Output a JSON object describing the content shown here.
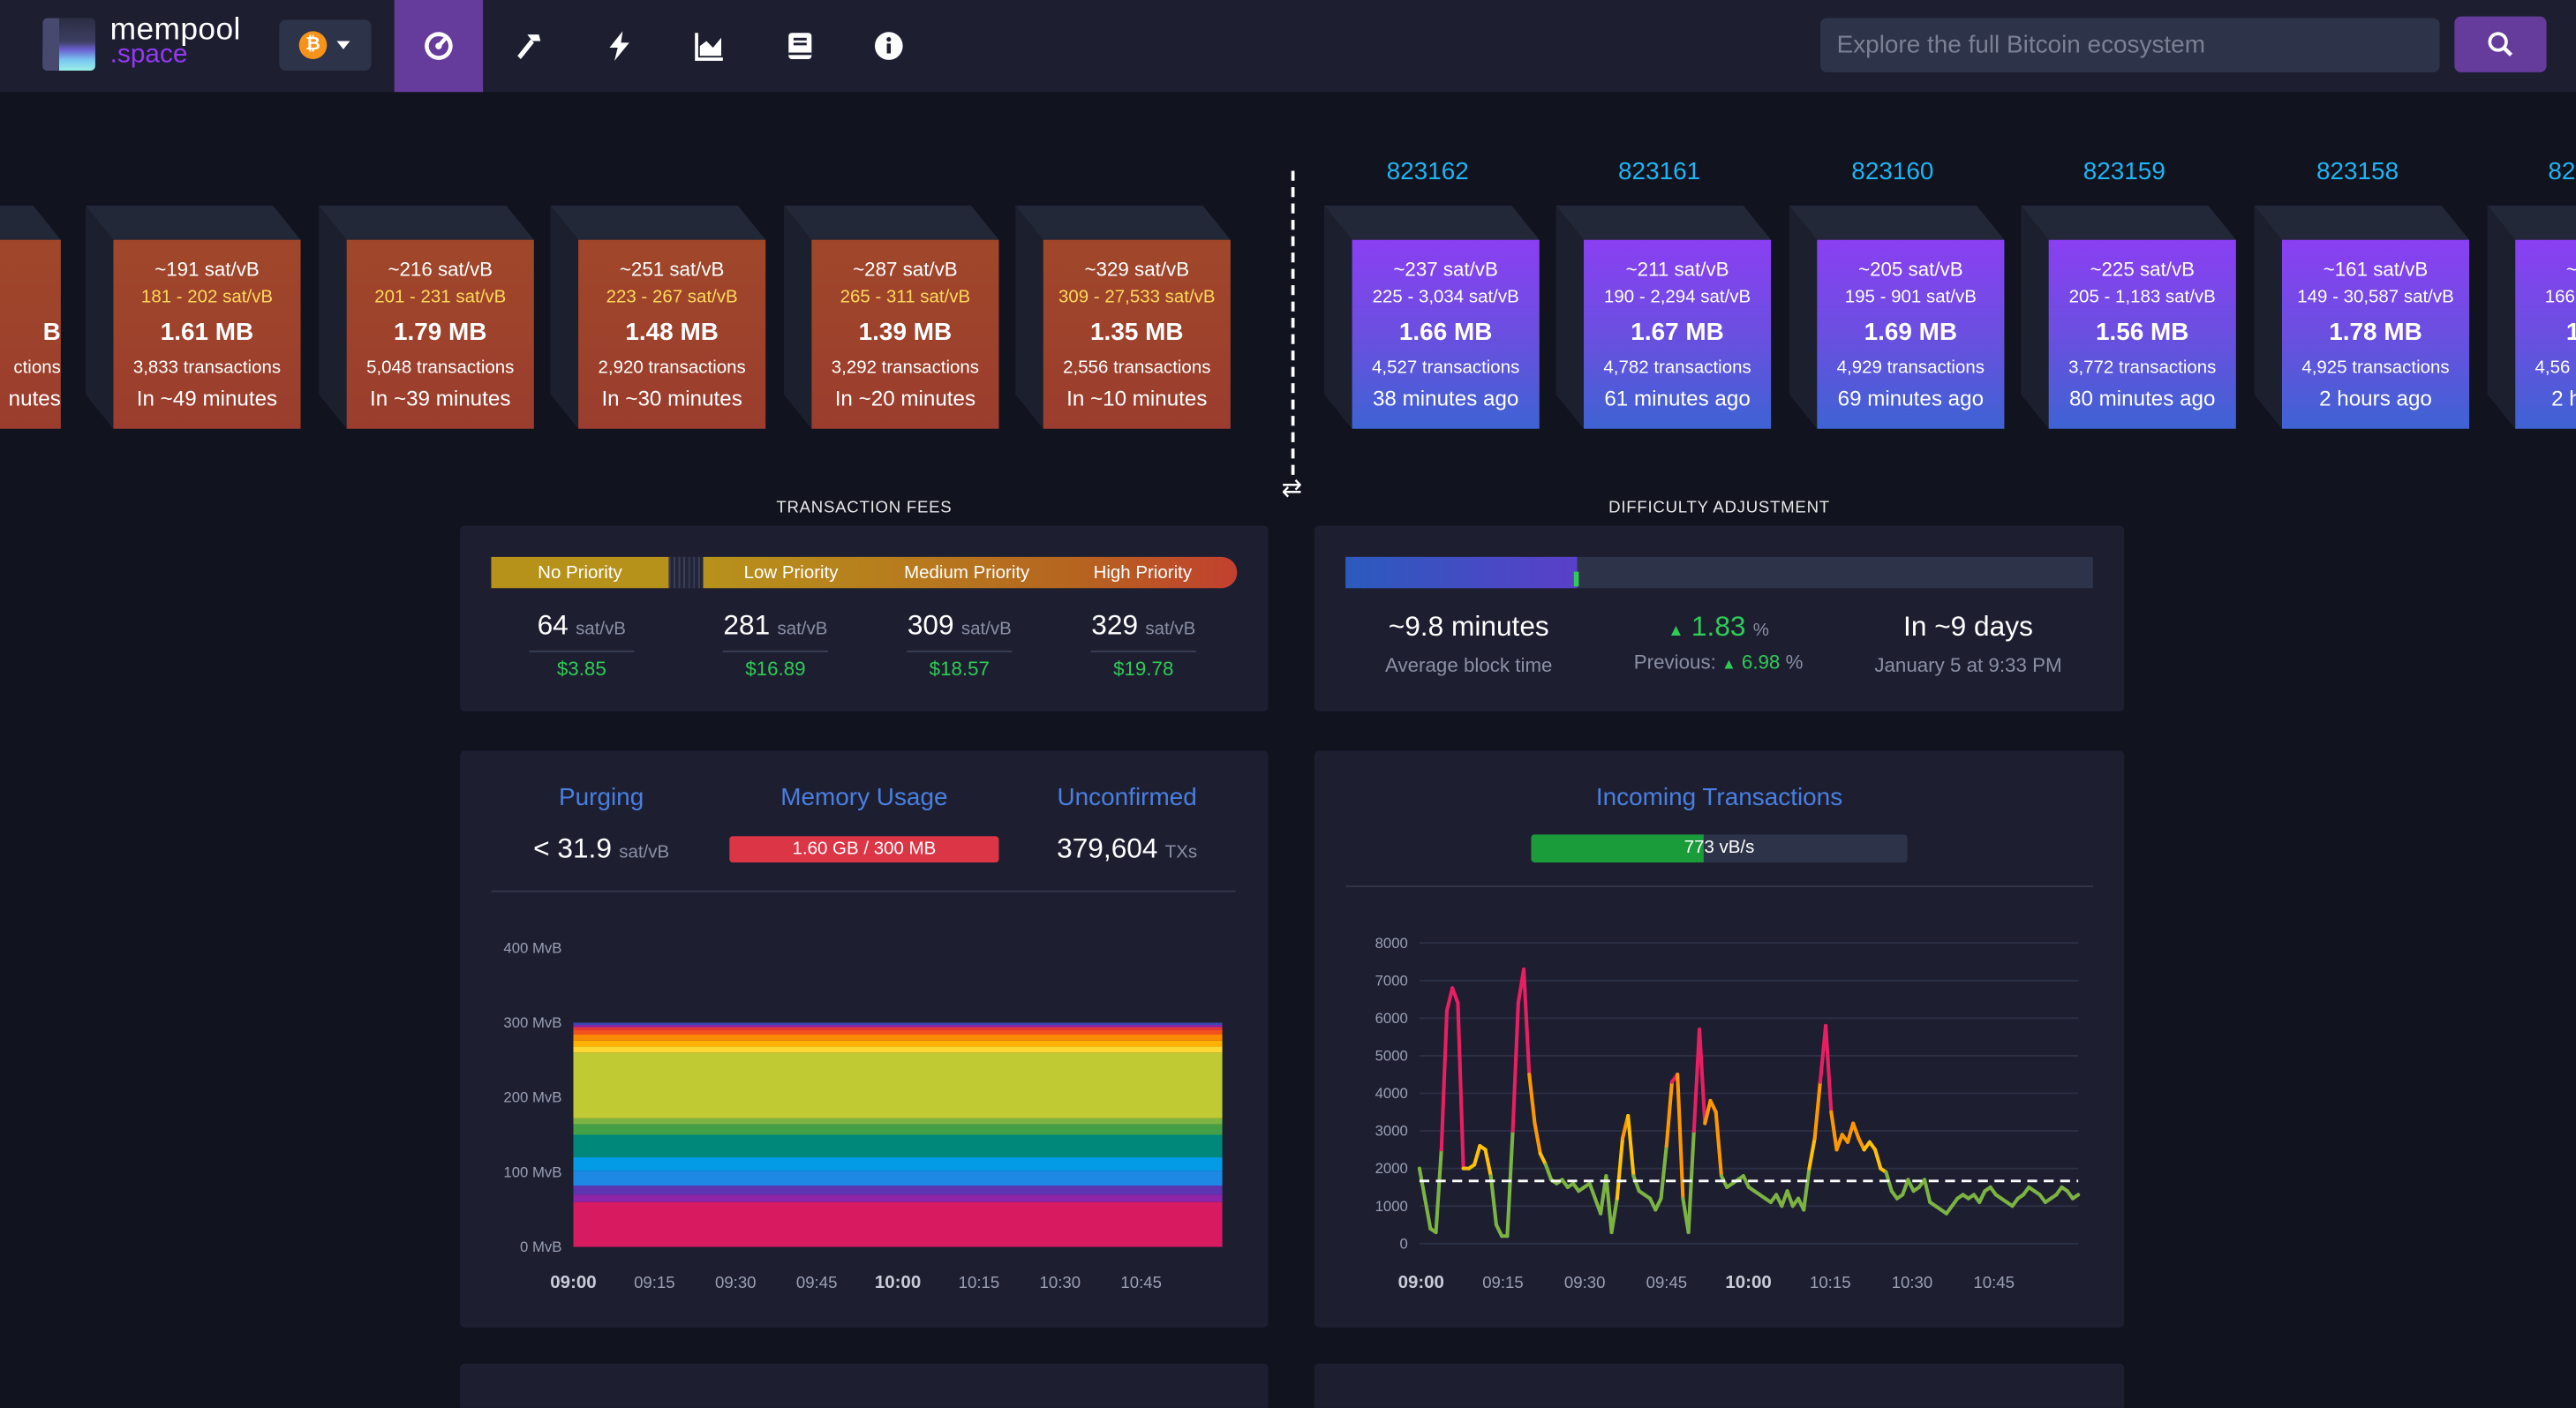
{
  "nav": {
    "brand_top": "mempool",
    "brand_bottom": ".space",
    "network_symbol": "₿",
    "search_placeholder": "Explore the full Bitcoin ecosystem",
    "active_color": "#653b9c"
  },
  "pending_blocks": [
    {
      "median": "",
      "range": "",
      "size": "B",
      "tx": "ctions",
      "eta": "nutes"
    },
    {
      "median": "~191 sat/vB",
      "range": "181 - 202 sat/vB",
      "size": "1.61 MB",
      "tx": "3,833 transactions",
      "eta": "In ~49 minutes"
    },
    {
      "median": "~216 sat/vB",
      "range": "201 - 231 sat/vB",
      "size": "1.79 MB",
      "tx": "5,048 transactions",
      "eta": "In ~39 minutes"
    },
    {
      "median": "~251 sat/vB",
      "range": "223 - 267 sat/vB",
      "size": "1.48 MB",
      "tx": "2,920 transactions",
      "eta": "In ~30 minutes"
    },
    {
      "median": "~287 sat/vB",
      "range": "265 - 311 sat/vB",
      "size": "1.39 MB",
      "tx": "3,292 transactions",
      "eta": "In ~20 minutes"
    },
    {
      "median": "~329 sat/vB",
      "range": "309 - 27,533 sat/vB",
      "size": "1.35 MB",
      "tx": "2,556 transactions",
      "eta": "In ~10 minutes"
    }
  ],
  "mined_blocks": [
    {
      "height": "823162",
      "median": "~237 sat/vB",
      "range": "225 - 3,034 sat/vB",
      "size": "1.66 MB",
      "tx": "4,527 transactions",
      "ago": "38 minutes ago"
    },
    {
      "height": "823161",
      "median": "~211 sat/vB",
      "range": "190 - 2,294 sat/vB",
      "size": "1.67 MB",
      "tx": "4,782 transactions",
      "ago": "61 minutes ago"
    },
    {
      "height": "823160",
      "median": "~205 sat/vB",
      "range": "195 - 901 sat/vB",
      "size": "1.69 MB",
      "tx": "4,929 transactions",
      "ago": "69 minutes ago"
    },
    {
      "height": "823159",
      "median": "~225 sat/vB",
      "range": "205 - 1,183 sat/vB",
      "size": "1.56 MB",
      "tx": "3,772 transactions",
      "ago": "80 minutes ago"
    },
    {
      "height": "823158",
      "median": "~161 sat/vB",
      "range": "149 - 30,587 sat/vB",
      "size": "1.78 MB",
      "tx": "4,925 transactions",
      "ago": "2 hours ago"
    },
    {
      "height": "82",
      "median": "~1",
      "range": "166",
      "size": "1",
      "tx": "4,56",
      "ago": "2 h"
    }
  ],
  "fees": {
    "title": "TRANSACTION FEES",
    "labels": {
      "no": "No Priority",
      "low": "Low Priority",
      "medium": "Medium Priority",
      "high": "High Priority"
    },
    "items": [
      {
        "value": "64",
        "unit": "sat/vB",
        "usd": "$3.85"
      },
      {
        "value": "281",
        "unit": "sat/vB",
        "usd": "$16.89"
      },
      {
        "value": "309",
        "unit": "sat/vB",
        "usd": "$18.57"
      },
      {
        "value": "329",
        "unit": "sat/vB",
        "usd": "$19.78"
      }
    ]
  },
  "difficulty": {
    "title": "DIFFICULTY ADJUSTMENT",
    "progress_fraction": 0.31,
    "block_time": "~9.8 minutes",
    "block_time_label": "Average block time",
    "change": "1.83",
    "change_unit": "%",
    "previous_label": "Previous:",
    "previous": "6.98",
    "previous_unit": "%",
    "eta": "In ~9 days",
    "eta_date": "January 5 at 9:33 PM"
  },
  "mempool": {
    "purging_title": "Purging",
    "purging_value": "< 31.9",
    "purging_unit": "sat/vB",
    "memory_title": "Memory Usage",
    "memory_value": "1.60 GB / 300 MB",
    "unconfirmed_title": "Unconfirmed",
    "unconfirmed_value": "379,604",
    "unconfirmed_unit": "TXs"
  },
  "incoming": {
    "title": "Incoming Transactions",
    "rate": "773 vB/s",
    "rate_fraction": 0.46
  },
  "chart_data": [
    {
      "type": "area",
      "stacked": true,
      "yticks": [
        "0 MvB",
        "100 MvB",
        "200 MvB",
        "300 MvB",
        "400 MvB"
      ],
      "ylim": [
        0,
        400
      ],
      "xticks": [
        "09:00",
        "09:15",
        "09:30",
        "09:45",
        "10:00",
        "10:15",
        "10:30",
        "10:45"
      ],
      "bands": [
        {
          "color": "#d81b60",
          "value": 60
        },
        {
          "color": "#8e24aa",
          "value": 10
        },
        {
          "color": "#5e35b1",
          "value": 12
        },
        {
          "color": "#1e88e5",
          "value": 20
        },
        {
          "color": "#039be5",
          "value": 18
        },
        {
          "color": "#00897b",
          "value": 30
        },
        {
          "color": "#43a047",
          "value": 14
        },
        {
          "color": "#7cb342",
          "value": 8
        },
        {
          "color": "#c0ca33",
          "value": 88
        },
        {
          "color": "#fdd835",
          "value": 8
        },
        {
          "color": "#ffb300",
          "value": 8
        },
        {
          "color": "#fb8c00",
          "value": 8
        },
        {
          "color": "#f4511e",
          "value": 6
        },
        {
          "color": "#e53935",
          "value": 4
        },
        {
          "color": "#8e24aa",
          "value": 3
        },
        {
          "color": "#3949ab",
          "value": 3
        }
      ]
    },
    {
      "type": "line",
      "ylim": [
        0,
        8000
      ],
      "yticks": [
        "0",
        "1000",
        "2000",
        "3000",
        "4000",
        "5000",
        "6000",
        "7000",
        "8000"
      ],
      "xticks": [
        "09:00",
        "09:15",
        "09:30",
        "09:45",
        "10:00",
        "10:15",
        "10:30",
        "10:45"
      ],
      "threshold": 1667,
      "x": [
        0,
        0.5,
        1,
        1.5,
        2,
        2.5,
        3,
        3.5,
        4,
        4.5,
        5,
        5.5,
        6,
        6.5,
        7,
        7.5,
        8,
        8.5,
        9,
        9.5,
        10,
        10.5,
        11,
        11.5,
        12,
        12.5,
        13,
        13.5,
        14,
        14.5,
        15,
        15.5,
        16,
        16.5,
        17,
        17.5,
        18,
        18.5,
        19,
        19.5,
        20,
        20.5,
        21,
        21.5,
        22,
        22.5,
        23,
        23.5,
        24,
        24.5,
        25,
        25.5,
        26,
        26.5,
        27,
        27.5,
        28,
        28.5,
        29,
        29.5,
        30,
        30.5,
        31,
        31.5,
        32,
        32.5,
        33,
        33.5,
        34,
        34.5,
        35,
        35.5,
        36,
        36.5,
        37,
        37.5,
        38,
        38.5,
        39,
        39.5,
        40,
        40.5,
        41,
        41.5,
        42,
        42.5,
        43,
        43.5,
        44,
        44.5,
        45,
        45.5,
        46,
        46.5,
        47,
        47.5,
        48,
        48.5,
        49,
        49.5,
        50,
        50.5,
        51,
        51.5,
        52,
        52.5,
        53,
        53.5,
        54,
        54.5,
        55,
        55.5,
        56,
        56.5,
        57,
        57.5,
        58,
        58.5,
        59,
        59.5,
        60
      ],
      "values": [
        2000,
        1200,
        400,
        300,
        2500,
        6200,
        6800,
        6400,
        2000,
        2000,
        2100,
        2600,
        2500,
        1800,
        500,
        200,
        200,
        3000,
        6400,
        7300,
        4500,
        3200,
        2400,
        2100,
        1700,
        1600,
        1700,
        1500,
        1600,
        1400,
        1500,
        1600,
        1200,
        800,
        1800,
        300,
        1200,
        2800,
        3400,
        1800,
        1400,
        1300,
        1200,
        900,
        1200,
        2600,
        4300,
        4500,
        1200,
        300,
        3000,
        5700,
        3200,
        3800,
        3500,
        1800,
        1500,
        1600,
        1700,
        1800,
        1500,
        1400,
        1300,
        1200,
        1100,
        1300,
        1000,
        1400,
        1000,
        1200,
        900,
        2000,
        2800,
        4300,
        5800,
        3500,
        2500,
        2900,
        2700,
        3200,
        2800,
        2500,
        2700,
        2500,
        2000,
        1900,
        1400,
        1200,
        1300,
        1700,
        1400,
        1500,
        1700,
        1100,
        1000,
        900,
        800,
        1000,
        1200,
        1300,
        1200,
        1300,
        1100,
        1400,
        1500,
        1300,
        1200,
        1100,
        1000,
        1200,
        1300,
        1500,
        1400,
        1300,
        1100,
        1200,
        1300,
        1500,
        1400,
        1200,
        1300
      ]
    }
  ]
}
